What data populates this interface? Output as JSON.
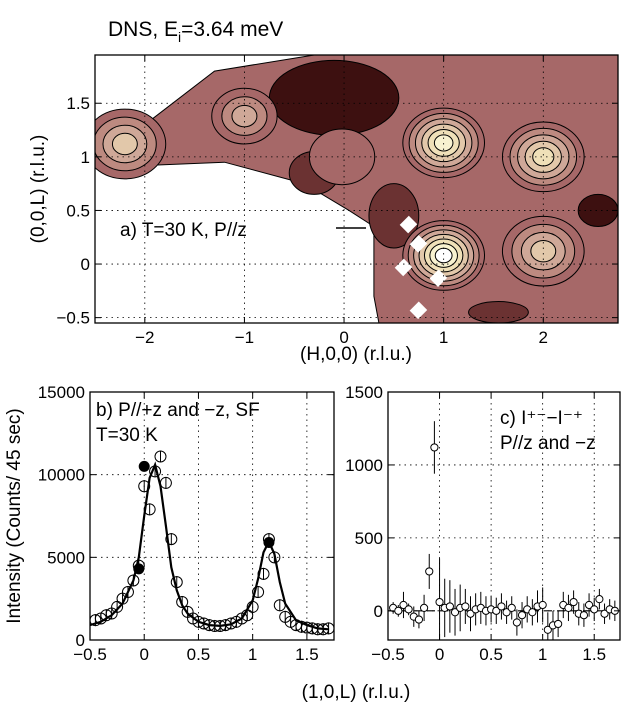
{
  "title_prefix": "DNS, E",
  "title_sub": "i",
  "title_suffix": "=3.64 meV",
  "shared_xlabel": "(1,0,L) (r.l.u.)",
  "chart_data": [
    {
      "type": "heatmap",
      "xlabel": "(H,0,0) (r.l.u.)",
      "ylabel": "(0,0,L) (r.l.u.)",
      "xlim": [
        -2.5,
        2.75
      ],
      "ylim": [
        -0.55,
        1.95
      ],
      "xticks": [
        -2,
        -1,
        0,
        1,
        2
      ],
      "xtick_labels": [
        "−2",
        "−1",
        "0",
        "1",
        "2"
      ],
      "yticks": [
        -0.5,
        0,
        0.5,
        1,
        1.5
      ],
      "ytick_labels": [
        "−0.5",
        "0",
        "0.5",
        "1",
        "1.5"
      ],
      "annotation": "a) T=30 K, P//z",
      "grid": true,
      "colormap": [
        "#3d1010",
        "#6b3232",
        "#8c4c4c",
        "#a66868",
        "#bd8a80",
        "#cfa898",
        "#e2c8aa",
        "#efe0b8",
        "#f8f2d0",
        "#ffffff"
      ],
      "peaks": [
        {
          "h": 1.0,
          "l": 0.08,
          "level": 9
        },
        {
          "h": 1.0,
          "l": 1.13,
          "level": 8
        },
        {
          "h": 2.0,
          "l": 1.0,
          "level": 7
        },
        {
          "h": 2.0,
          "l": 0.12,
          "level": 6
        },
        {
          "h": -2.2,
          "l": 1.12,
          "level": 6
        },
        {
          "h": -1.0,
          "l": 1.38,
          "level": 5
        },
        {
          "h": -0.02,
          "l": 1.0,
          "level": 3
        }
      ]
    },
    {
      "type": "scatter",
      "ylabel": "Intensity (Counts/ 45 sec)",
      "xlim": [
        -0.5,
        1.75
      ],
      "ylim": [
        0,
        15000
      ],
      "xticks": [
        -0.5,
        0,
        0.5,
        1,
        1.5
      ],
      "xtick_labels": [
        "−0.5",
        "0",
        "0.5",
        "1",
        "1.5"
      ],
      "yticks": [
        0,
        5000,
        10000,
        15000
      ],
      "ytick_labels": [
        "0",
        "5000",
        "10000",
        "15000"
      ],
      "annotation_line1": "b) P//+z and −z, SF",
      "annotation_line2": "T=30 K",
      "grid": true,
      "series": [
        {
          "marker": "open-circle",
          "x": [
            -0.45,
            -0.4,
            -0.35,
            -0.3,
            -0.25,
            -0.2,
            -0.15,
            -0.1,
            -0.05,
            0.0,
            0.05,
            0.1,
            0.15,
            0.2,
            0.25,
            0.3,
            0.35,
            0.4,
            0.45,
            0.5,
            0.55,
            0.6,
            0.65,
            0.7,
            0.75,
            0.8,
            0.85,
            0.9,
            0.95,
            1.0,
            1.05,
            1.1,
            1.15,
            1.2,
            1.25,
            1.3,
            1.35,
            1.4,
            1.45,
            1.5,
            1.55,
            1.6,
            1.65,
            1.7
          ],
          "y": [
            1200,
            1300,
            1500,
            1600,
            2000,
            2500,
            2900,
            3600,
            4500,
            9300,
            7900,
            10200,
            11100,
            9500,
            6100,
            3500,
            2300,
            1700,
            1300,
            1100,
            1000,
            900,
            850,
            850,
            900,
            1000,
            1100,
            1300,
            1500,
            2000,
            2900,
            4000,
            6100,
            5000,
            2100,
            1400,
            1100,
            900,
            800,
            750,
            700,
            650,
            650,
            700
          ]
        },
        {
          "marker": "filled-circle",
          "x": [
            -0.05,
            0.0,
            1.15
          ],
          "y": [
            4300,
            10500,
            5900
          ]
        },
        {
          "marker": "line",
          "x": [
            -0.5,
            -0.4,
            -0.3,
            -0.2,
            -0.1,
            -0.05,
            0.0,
            0.05,
            0.1,
            0.15,
            0.2,
            0.25,
            0.3,
            0.35,
            0.4,
            0.5,
            0.6,
            0.7,
            0.8,
            0.9,
            1.0,
            1.05,
            1.1,
            1.15,
            1.2,
            1.25,
            1.3,
            1.4,
            1.5,
            1.6,
            1.7
          ],
          "y": [
            900,
            1100,
            1500,
            2200,
            3600,
            5000,
            7500,
            9800,
            10600,
            9300,
            6900,
            4400,
            3000,
            2100,
            1600,
            1100,
            900,
            850,
            950,
            1300,
            2400,
            3700,
            5300,
            5950,
            5200,
            3500,
            2200,
            1200,
            900,
            700,
            650
          ]
        }
      ]
    },
    {
      "type": "scatter",
      "xlim": [
        -0.5,
        1.75
      ],
      "ylim": [
        -200,
        1500
      ],
      "xticks": [
        -0.5,
        0,
        0.5,
        1,
        1.5
      ],
      "xtick_labels": [
        "−0.5",
        "0",
        "0.5",
        "1",
        "1.5"
      ],
      "yticks": [
        0,
        500,
        1000,
        1500
      ],
      "ytick_labels": [
        "0",
        "500",
        "1000",
        "1500"
      ],
      "annotation_line1": "c) I⁺⁻−I⁻⁺",
      "annotation_line2": "P//z and −z",
      "grid": true,
      "zero_line": "dashed",
      "series": [
        {
          "marker": "open-circle-errorbar",
          "x": [
            -0.45,
            -0.4,
            -0.35,
            -0.3,
            -0.25,
            -0.2,
            -0.15,
            -0.1,
            -0.05,
            0.0,
            0.05,
            0.1,
            0.15,
            0.2,
            0.25,
            0.3,
            0.35,
            0.4,
            0.45,
            0.5,
            0.55,
            0.6,
            0.65,
            0.7,
            0.75,
            0.8,
            0.85,
            0.9,
            0.95,
            1.0,
            1.05,
            1.1,
            1.15,
            1.2,
            1.25,
            1.3,
            1.35,
            1.4,
            1.45,
            1.5,
            1.55,
            1.6,
            1.65,
            1.7
          ],
          "y": [
            20,
            0,
            40,
            10,
            -40,
            -60,
            20,
            270,
            1120,
            60,
            20,
            30,
            -10,
            20,
            30,
            -20,
            10,
            20,
            0,
            10,
            0,
            30,
            -10,
            20,
            -80,
            -30,
            10,
            -10,
            30,
            40,
            -130,
            -100,
            -90,
            40,
            20,
            60,
            -20,
            -30,
            40,
            10,
            80,
            -20,
            10,
            0
          ],
          "err": [
            40,
            40,
            90,
            40,
            70,
            60,
            90,
            120,
            180,
            300,
            200,
            180,
            160,
            160,
            120,
            120,
            110,
            110,
            100,
            90,
            90,
            90,
            80,
            80,
            90,
            90,
            90,
            90,
            110,
            120,
            120,
            100,
            90,
            90,
            90,
            80,
            80,
            80,
            80,
            80,
            70,
            70,
            70,
            70
          ]
        }
      ]
    }
  ]
}
